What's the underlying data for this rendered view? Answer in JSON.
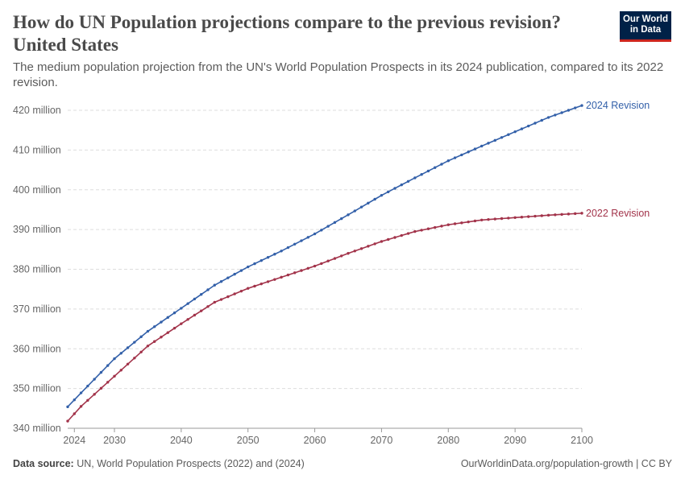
{
  "header": {
    "title": "How do UN Population projections compare to the previous revision? United States",
    "subtitle": "The medium population projection from the UN's World Population Prospects in its 2024 publication, compared to its 2022 revision."
  },
  "logo": {
    "line1": "Our World",
    "line2": "in Data"
  },
  "footer": {
    "source_label": "Data source:",
    "source_text": "UN, World Population Prospects (2022) and (2024)",
    "credit": "OurWorldinData.org/population-growth | CC BY"
  },
  "colors": {
    "rev2024": "#3360a9",
    "rev2022": "#a2334a",
    "grid": "#dddddd",
    "axis": "#999999"
  },
  "chart_data": {
    "type": "line",
    "xlabel": "",
    "ylabel": "",
    "xlim": [
      2023,
      2100
    ],
    "ylim": [
      340,
      420
    ],
    "y_unit_suffix": " million",
    "x_ticks": [
      2024,
      2030,
      2040,
      2050,
      2060,
      2070,
      2080,
      2090,
      2100
    ],
    "y_ticks": [
      340,
      350,
      360,
      370,
      380,
      390,
      400,
      410,
      420
    ],
    "grid": "horizontal dashed",
    "legend": "inline labels at line ends (right)",
    "series": [
      {
        "name": "2024 Revision",
        "x": [
          2023,
          2025,
          2030,
          2035,
          2040,
          2045,
          2050,
          2055,
          2060,
          2065,
          2070,
          2075,
          2080,
          2085,
          2090,
          2095,
          2100
        ],
        "values": [
          345.4,
          348.9,
          357.5,
          364.4,
          370.2,
          376.0,
          380.6,
          384.6,
          388.9,
          393.7,
          398.6,
          403.0,
          407.3,
          411.0,
          414.6,
          418.2,
          421.2
        ]
      },
      {
        "name": "2022 Revision",
        "x": [
          2023,
          2025,
          2030,
          2035,
          2040,
          2045,
          2050,
          2055,
          2060,
          2065,
          2070,
          2075,
          2080,
          2085,
          2090,
          2095,
          2100
        ],
        "values": [
          341.8,
          345.5,
          353.1,
          360.7,
          366.3,
          371.7,
          375.2,
          378.0,
          380.8,
          384.0,
          387.0,
          389.5,
          391.2,
          392.4,
          393.0,
          393.6,
          394.1
        ]
      }
    ]
  }
}
